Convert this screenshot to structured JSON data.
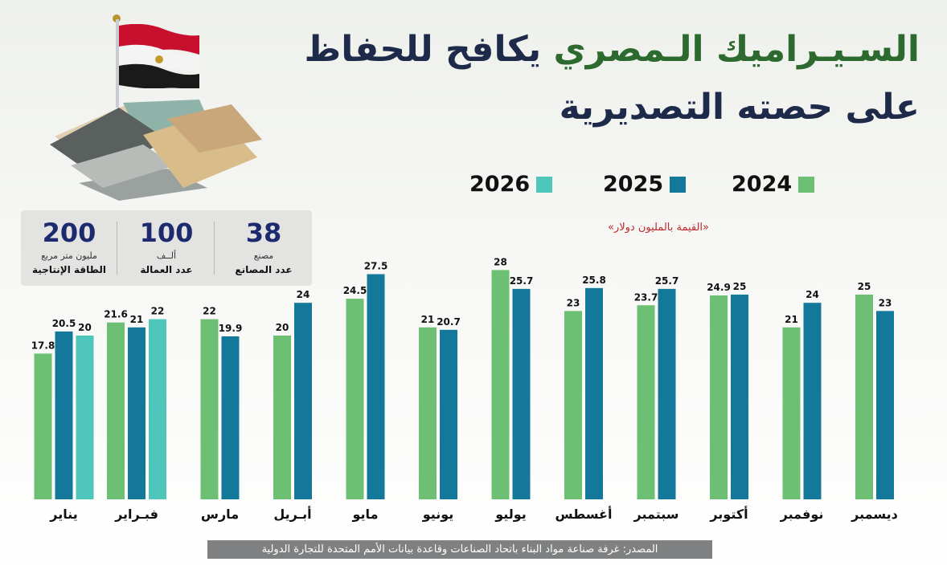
{
  "header": {
    "title_line1_part1": "السـيـراميك الـمصري",
    "title_line1_part2": "يكافح للحفاظ",
    "title_line2": "على حصته التصديرية"
  },
  "legend": [
    {
      "label": "2024",
      "color": "#6dbf73"
    },
    {
      "label": "2025",
      "color": "#13789a"
    },
    {
      "label": "2026",
      "color": "#4ec6bb"
    }
  ],
  "unit_label": "«القيمة بالمليون دولار»",
  "stats": [
    {
      "number": "38",
      "unit": "مصنع",
      "label": "عدد المصانع"
    },
    {
      "number": "100",
      "unit": "ألــف",
      "label": "عدد العمالة"
    },
    {
      "number": "200",
      "unit": "مليون متر مربع",
      "label": "الطاقة الإنتاجية"
    }
  ],
  "chart_data": {
    "type": "bar",
    "categories": [
      "ديسمبر",
      "نوفمبر",
      "أكتوبر",
      "سبتمبر",
      "أغسطس",
      "يوليو",
      "يونيو",
      "مايو",
      "أبـريل",
      "مارس",
      "فبـراير",
      "يناير"
    ],
    "series": [
      {
        "name": "2024",
        "color": "#6dbf73",
        "values": [
          25,
          21,
          24.9,
          23.7,
          23,
          28,
          21,
          24.5,
          20,
          22,
          21.6,
          17.8
        ]
      },
      {
        "name": "2025",
        "color": "#13789a",
        "values": [
          23,
          24,
          25,
          25.7,
          25.8,
          25.7,
          20.7,
          27.5,
          24,
          19.9,
          21,
          20.5
        ]
      },
      {
        "name": "2026",
        "color": "#4ec6bb",
        "values": [
          null,
          null,
          null,
          null,
          null,
          null,
          null,
          null,
          null,
          null,
          22,
          20
        ]
      }
    ],
    "value_labels": [
      [
        "25",
        "21",
        "24.9",
        "23.7",
        "23",
        "28",
        "21",
        "24.5",
        "20",
        "22",
        "21.6",
        "17.8"
      ],
      [
        "23",
        "24",
        "25",
        "25.7",
        "25.8",
        "25.7",
        "20.7",
        "27.5",
        "24",
        "19.9",
        "21",
        "20.5"
      ],
      [
        null,
        null,
        null,
        null,
        null,
        null,
        null,
        null,
        null,
        null,
        "22",
        "20"
      ]
    ],
    "ylim": [
      0,
      30
    ],
    "grid": false,
    "legend_position": "top",
    "direction": "rtl"
  },
  "source": "المصدر: غرفة صناعة مواد البناء باتحاد الصناعات وقاعدة بيانات الأمم المتحدة للتجارة الدولية"
}
